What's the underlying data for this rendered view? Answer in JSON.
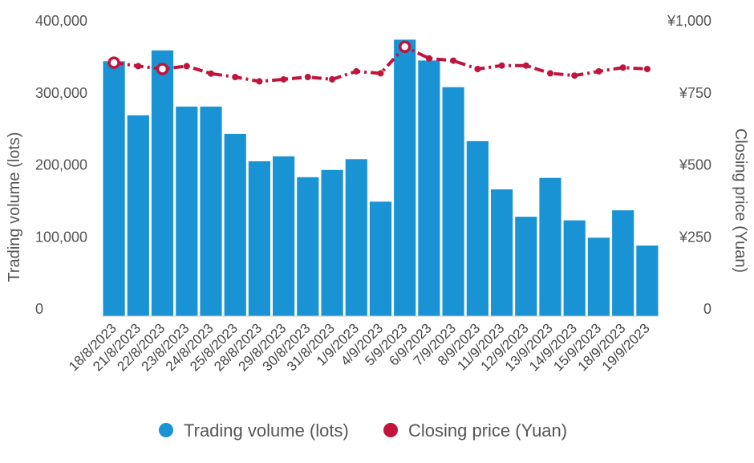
{
  "chart_data": {
    "type": "bar",
    "categories": [
      "18/8/2023",
      "21/8/2023",
      "22/8/2023",
      "23/8/2023",
      "24/8/2023",
      "25/8/2023",
      "28/8/2023",
      "29/8/2023",
      "30/8/2023",
      "31/8/2023",
      "1/9/2023",
      "4/9/2023",
      "5/9/2023",
      "6/9/2023",
      "7/9/2023",
      "8/9/2023",
      "11/9/2023",
      "12/9/2023",
      "13/9/2023",
      "14/9/2023",
      "15/9/2023",
      "18/9/2023",
      "19/9/2023"
    ],
    "series": [
      {
        "name": "Trading volume (lots)",
        "type": "bar",
        "axis": "left",
        "color": "#1a93d4",
        "values": [
          354000,
          279000,
          369000,
          291000,
          291000,
          253000,
          215000,
          222000,
          193000,
          203000,
          218000,
          159000,
          384000,
          355000,
          318000,
          243000,
          176000,
          138000,
          192000,
          133000,
          109000,
          147000,
          98000
        ]
      },
      {
        "name": "Closing price (Yuan)",
        "type": "line",
        "axis": "right",
        "color": "#c0143c",
        "values": [
          880,
          868,
          858,
          868,
          842,
          830,
          815,
          822,
          830,
          822,
          850,
          843,
          935,
          895,
          887,
          858,
          870,
          870,
          843,
          835,
          850,
          863,
          858
        ]
      }
    ],
    "y_left": {
      "label": "Trading volume (lots)",
      "ylim": [
        0,
        400000
      ],
      "ticks": [
        "0",
        "100,000",
        "200,000",
        "300,000",
        "400,000"
      ]
    },
    "y_right": {
      "label": "Closing price (Yuan)",
      "ylim": [
        0,
        1000
      ],
      "ticks": [
        "0",
        "¥250",
        "¥500",
        "¥750",
        "¥1,000"
      ]
    },
    "highlighted_points": [
      0,
      2,
      12
    ],
    "legend": {
      "position": "bottom"
    },
    "grid": false
  }
}
